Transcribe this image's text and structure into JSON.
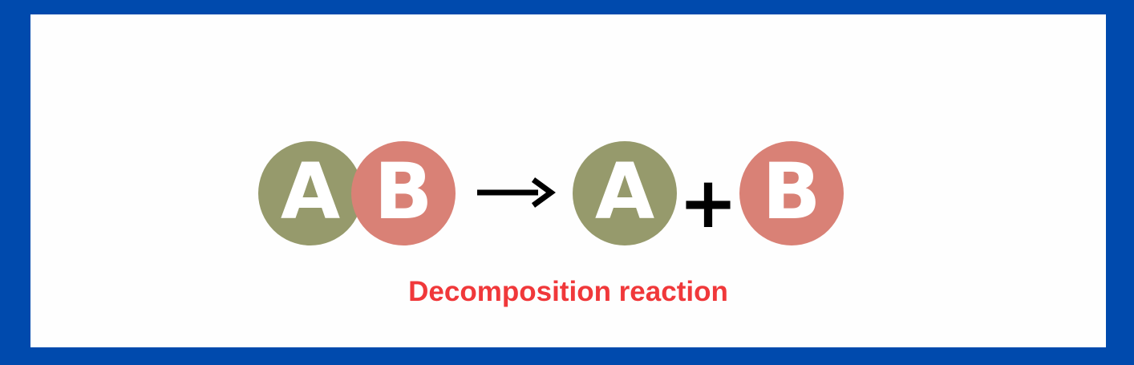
{
  "diagram": {
    "reactant": {
      "left_label": "A",
      "right_label": "B"
    },
    "products": {
      "first_label": "A",
      "operator": "+",
      "second_label": "B"
    },
    "caption": "Decomposition reaction"
  },
  "colors": {
    "border": "#004aad",
    "background": "#fefefe",
    "circle_a": "#969a6c",
    "circle_b": "#d98176",
    "letter": "#ffffff",
    "arrow": "#000000",
    "caption": "#f0383a"
  },
  "icons": {
    "arrow": "right-arrow-icon"
  }
}
